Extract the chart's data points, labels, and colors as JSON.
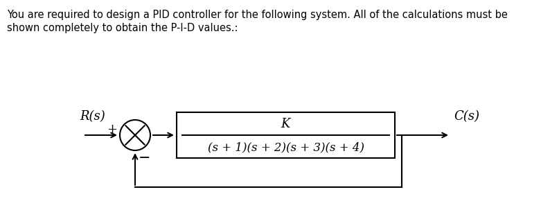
{
  "bg_color": "#ffffff",
  "text_color": "#000000",
  "line_color": "#000000",
  "line_width": 1.5,
  "header_line1": "You are required to design a PID controller for the following system. All of the calculations must be",
  "header_line2": "shown completely to obtain the P-I-D values.:",
  "header_fontsize": 10.5,
  "transfer_fn_num": "K",
  "transfer_fn_den": "(s + 1)(s + 2)(s + 3)(s + 4)",
  "label_Rs": "R(s)",
  "label_plus": "+",
  "label_minus": "−",
  "label_Cs": "C(s)",
  "italic_fontsize": 13,
  "label_fontsize": 13,
  "den_fontsize": 12
}
